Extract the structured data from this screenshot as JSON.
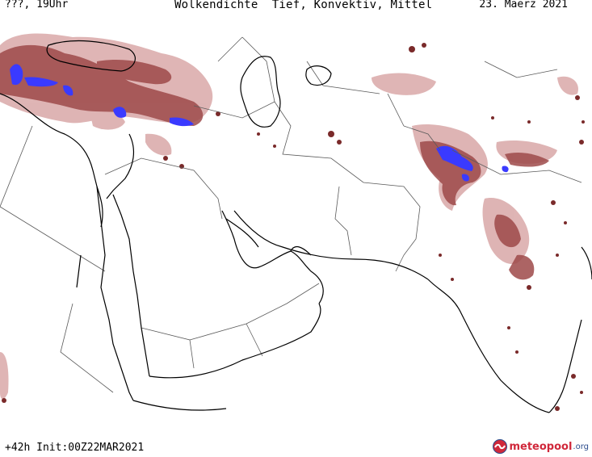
{
  "header": {
    "left": "???, 19Uhr",
    "center": "Wolkendichte  Tief, Konvektiv, Mittel",
    "right": "23. Maerz 2021"
  },
  "footer": {
    "run": "+42h Init:00Z22MAR2021",
    "logo_main": "meteopool",
    "logo_tld": ".org"
  },
  "legend_colors": {
    "light": "#d9a8a8",
    "medium": "#9e4a4a",
    "dense": "#7a2a2a",
    "convective": "#3a3aff",
    "coast": "#000000",
    "border": "#5a5a5a"
  },
  "map": {
    "region": "Middle East / South Asia",
    "field": "cloud density (low, convective, mid)"
  }
}
